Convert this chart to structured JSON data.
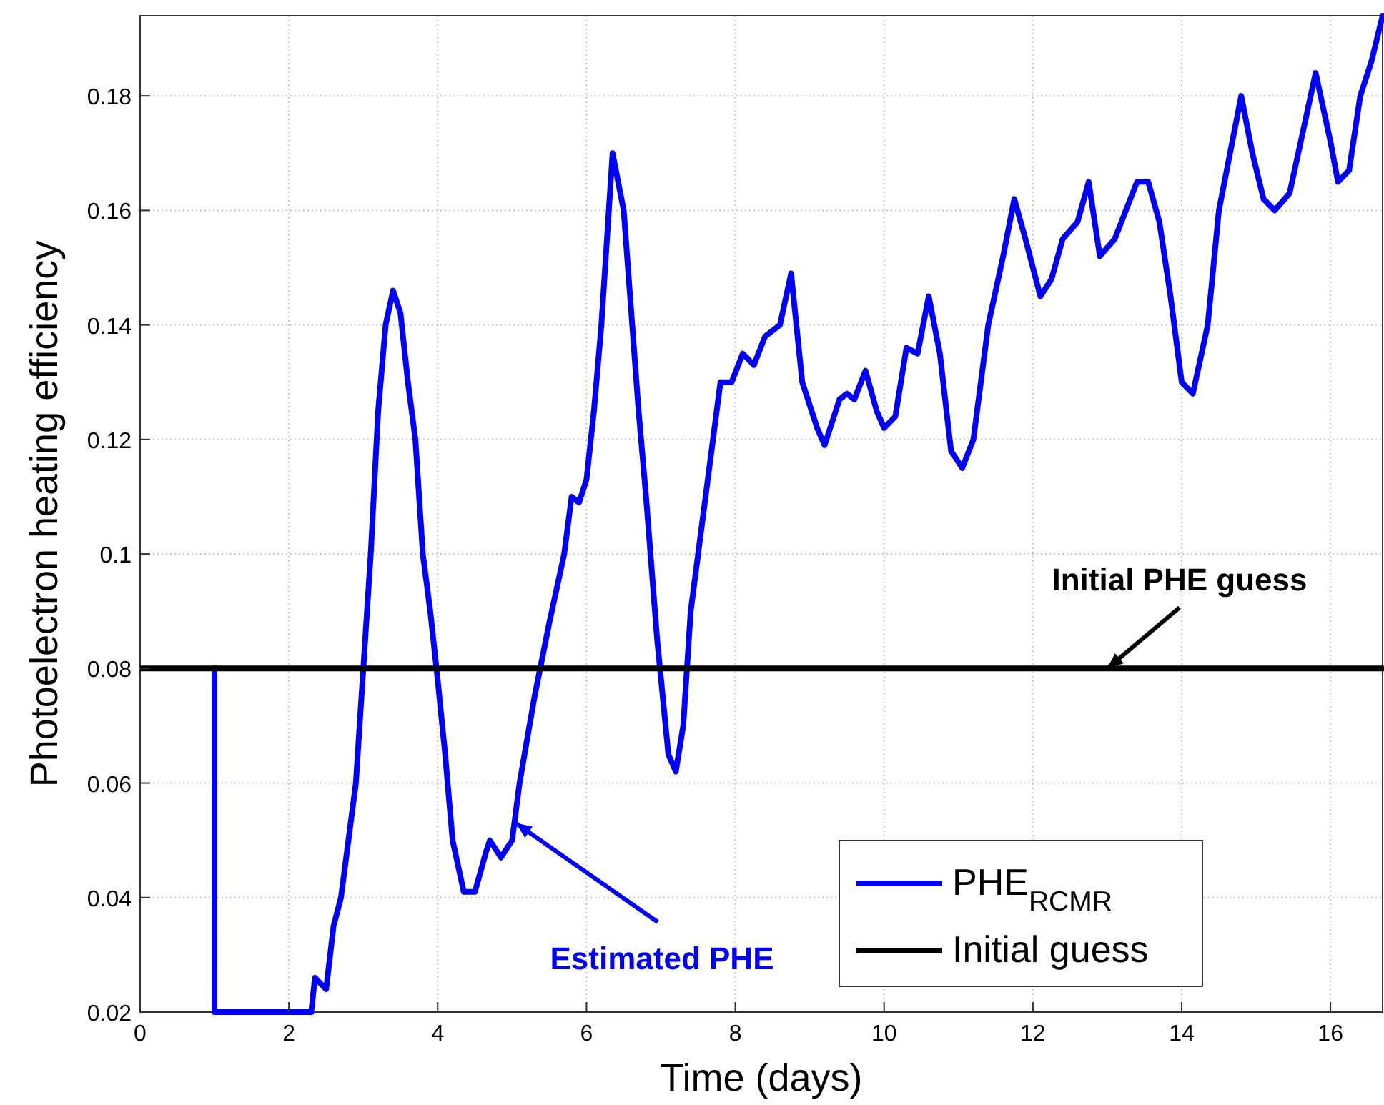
{
  "chart_data": {
    "type": "line",
    "xlabel": "Time (days)",
    "ylabel": "Photoelectron heating efficiency",
    "xlim": [
      0,
      16.7
    ],
    "ylim": [
      0.02,
      0.194
    ],
    "xticks": [
      0,
      2,
      4,
      6,
      8,
      10,
      12,
      14,
      16
    ],
    "yticks": [
      {
        "value": 0.02,
        "label": "0.02"
      },
      {
        "value": 0.04,
        "label": "0.04"
      },
      {
        "value": 0.06,
        "label": "0.06"
      },
      {
        "value": 0.08,
        "label": "0.08"
      },
      {
        "value": 0.1,
        "label": "0.1"
      },
      {
        "value": 0.12,
        "label": "0.12"
      },
      {
        "value": 0.14,
        "label": "0.14"
      },
      {
        "value": 0.16,
        "label": "0.16"
      },
      {
        "value": 0.18,
        "label": "0.18"
      }
    ],
    "grid": true,
    "legend": "bottom right",
    "line_style": "solid",
    "series": [
      {
        "name": "PHE$_{RCMR}$",
        "color": "#0000ff",
        "x": [
          1,
          1,
          2.3,
          2.35,
          2.5,
          2.6,
          2.7,
          2.9,
          3.0,
          3.1,
          3.2,
          3.3,
          3.4,
          3.5,
          3.6,
          3.7,
          3.8,
          3.9,
          4.0,
          4.1,
          4.2,
          4.35,
          4.5,
          4.65,
          4.7,
          4.85,
          5.0,
          5.1,
          5.3,
          5.5,
          5.7,
          5.8,
          5.9,
          6.0,
          6.1,
          6.2,
          6.35,
          6.5,
          6.7,
          6.8,
          6.95,
          7.1,
          7.2,
          7.3,
          7.4,
          7.6,
          7.8,
          7.95,
          8.1,
          8.25,
          8.4,
          8.6,
          8.75,
          8.9,
          9.1,
          9.2,
          9.4,
          9.5,
          9.6,
          9.75,
          9.9,
          10.0,
          10.15,
          10.3,
          10.45,
          10.6,
          10.75,
          10.9,
          11.05,
          11.2,
          11.4,
          11.6,
          11.75,
          11.9,
          12.0,
          12.1,
          12.25,
          12.4,
          12.6,
          12.75,
          12.9,
          13.1,
          13.25,
          13.4,
          13.55,
          13.7,
          13.85,
          14.0,
          14.15,
          14.35,
          14.5,
          14.65,
          14.8,
          14.95,
          15.1,
          15.25,
          15.45,
          15.6,
          15.8,
          16.0,
          16.1,
          16.25,
          16.4,
          16.55,
          16.7
        ],
        "values": [
          0.08,
          0.02,
          0.02,
          0.026,
          0.024,
          0.035,
          0.04,
          0.06,
          0.08,
          0.1,
          0.125,
          0.14,
          0.146,
          0.142,
          0.13,
          0.12,
          0.1,
          0.09,
          0.078,
          0.065,
          0.05,
          0.041,
          0.041,
          0.048,
          0.05,
          0.047,
          0.05,
          0.06,
          0.075,
          0.088,
          0.1,
          0.11,
          0.109,
          0.113,
          0.125,
          0.14,
          0.17,
          0.16,
          0.125,
          0.11,
          0.085,
          0.065,
          0.062,
          0.07,
          0.09,
          0.11,
          0.13,
          0.13,
          0.135,
          0.133,
          0.138,
          0.14,
          0.149,
          0.13,
          0.122,
          0.119,
          0.127,
          0.128,
          0.127,
          0.132,
          0.125,
          0.122,
          0.124,
          0.136,
          0.135,
          0.145,
          0.135,
          0.118,
          0.115,
          0.12,
          0.14,
          0.152,
          0.162,
          0.155,
          0.15,
          0.145,
          0.148,
          0.155,
          0.158,
          0.165,
          0.152,
          0.155,
          0.16,
          0.165,
          0.165,
          0.158,
          0.145,
          0.13,
          0.128,
          0.14,
          0.16,
          0.17,
          0.18,
          0.17,
          0.162,
          0.16,
          0.163,
          0.172,
          0.184,
          0.172,
          0.165,
          0.167,
          0.18,
          0.186,
          0.194
        ]
      },
      {
        "name": "Initial guess",
        "color": "#000000",
        "x": [
          0,
          16.7
        ],
        "values": [
          0.08,
          0.08
        ]
      }
    ],
    "annotations": [
      {
        "text": "Initial PHE guess",
        "x": 13,
        "y": 0.08
      },
      {
        "text": "Estimated PHE",
        "x": 5.05,
        "y": 0.053
      }
    ]
  }
}
